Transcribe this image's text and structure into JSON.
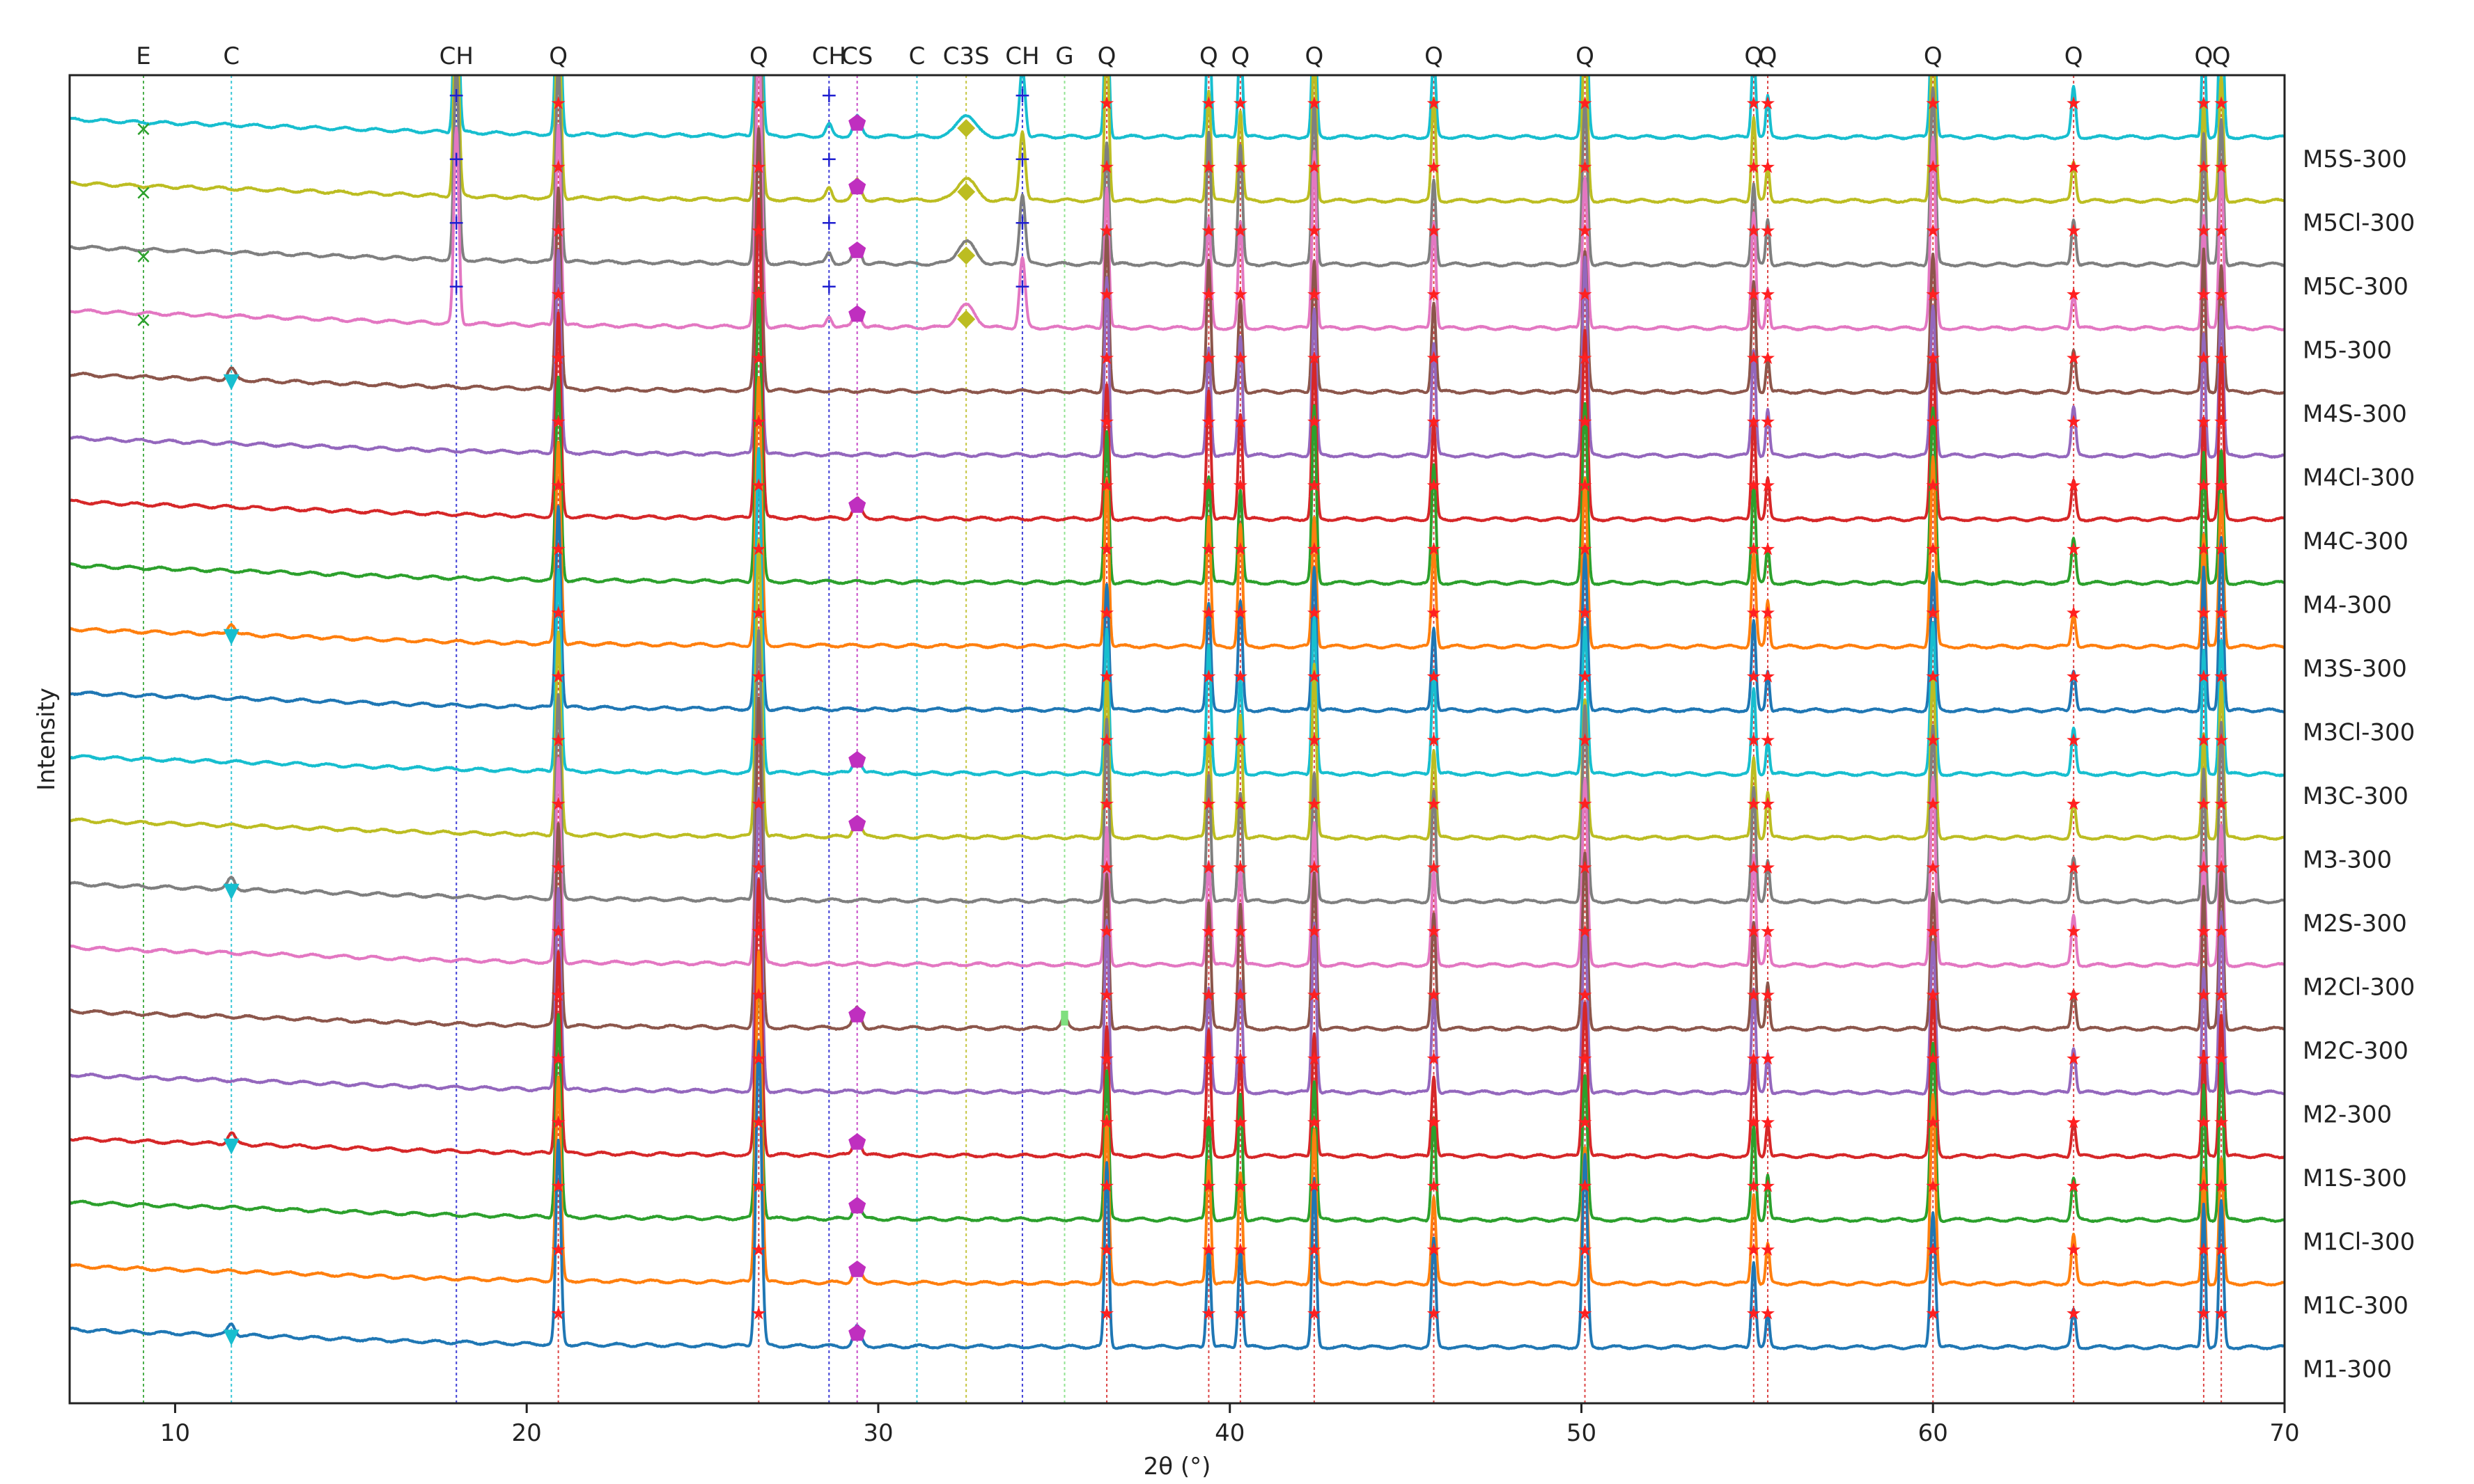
{
  "chart_data": {
    "type": "line",
    "xlabel": "2θ (°)",
    "ylabel": "Intensity",
    "xlim": [
      7,
      70
    ],
    "x_ticks": [
      10,
      20,
      30,
      40,
      50,
      60,
      70
    ],
    "grid": false,
    "phase_lines": [
      {
        "label": "E",
        "x": 9.1,
        "color": "#2ca02c"
      },
      {
        "label": "C",
        "x": 11.6,
        "color": "#17becf"
      },
      {
        "label": "CH",
        "x": 18.0,
        "color": "#1f1fd0"
      },
      {
        "label": "Q",
        "x": 20.9,
        "color": "#d62728"
      },
      {
        "label": "Q",
        "x": 26.6,
        "color": "#d62728"
      },
      {
        "label": "CH",
        "x": 28.6,
        "color": "#1f1fd0"
      },
      {
        "label": "CS",
        "x": 29.4,
        "color": "#bf2fbf"
      },
      {
        "label": "C",
        "x": 31.1,
        "color": "#17becf"
      },
      {
        "label": "C3S",
        "x": 32.5,
        "color": "#bcbd22"
      },
      {
        "label": "CH",
        "x": 34.1,
        "color": "#1f1fd0"
      },
      {
        "label": "G",
        "x": 35.3,
        "color": "#7fdf7f"
      },
      {
        "label": "Q",
        "x": 36.5,
        "color": "#d62728"
      },
      {
        "label": "Q",
        "x": 39.4,
        "color": "#d62728"
      },
      {
        "label": "Q",
        "x": 40.3,
        "color": "#d62728"
      },
      {
        "label": "Q",
        "x": 42.4,
        "color": "#d62728"
      },
      {
        "label": "Q",
        "x": 45.8,
        "color": "#d62728"
      },
      {
        "label": "Q",
        "x": 50.1,
        "color": "#d62728"
      },
      {
        "label": "Q",
        "x": 54.9,
        "color": "#d62728"
      },
      {
        "label": "Q",
        "x": 55.3,
        "color": "#d62728"
      },
      {
        "label": "Q",
        "x": 60.0,
        "color": "#d62728"
      },
      {
        "label": "Q",
        "x": 64.0,
        "color": "#d62728"
      },
      {
        "label": "Q",
        "x": 67.7,
        "color": "#d62728"
      },
      {
        "label": "Q",
        "x": 68.2,
        "color": "#d62728"
      }
    ],
    "series": [
      {
        "name": "M5S-300",
        "color": "#17becf",
        "phases": [
          "E",
          "CH",
          "Q",
          "CH",
          "CS",
          "C3S",
          "CH",
          "Q"
        ],
        "peaks": {
          "E": 0.15,
          "CH": 0.55,
          "C3S": 0.2,
          "Q": 1.0
        }
      },
      {
        "name": "M5Cl-300",
        "color": "#bcbd22",
        "phases": [
          "E",
          "CH",
          "Q",
          "CH",
          "CS",
          "C3S",
          "CH",
          "Q"
        ],
        "peaks": {
          "E": 0.15,
          "CH": 0.5,
          "C3S": 0.2,
          "Q": 1.0
        }
      },
      {
        "name": "M5C-300",
        "color": "#7f7f7f",
        "phases": [
          "E",
          "CH",
          "Q",
          "CS",
          "C3S",
          "CH",
          "Q"
        ],
        "peaks": {
          "E": 0.15,
          "CH": 0.5,
          "C3S": 0.2,
          "Q": 1.0
        }
      },
      {
        "name": "M5-300",
        "color": "#e377c2",
        "phases": [
          "E",
          "CH",
          "Q",
          "CH",
          "CS",
          "C3S",
          "CH",
          "Q"
        ],
        "peaks": {
          "E": 0.15,
          "CH": 0.5,
          "C3S": 0.2,
          "Q": 1.0
        }
      },
      {
        "name": "M4S-300",
        "color": "#8c564b",
        "phases": [
          "C",
          "Q"
        ],
        "peaks": {
          "C": 0.1,
          "Q": 1.0
        }
      },
      {
        "name": "M4Cl-300",
        "color": "#9467bd",
        "phases": [
          "Q"
        ],
        "peaks": {
          "Q": 1.0
        }
      },
      {
        "name": "M4C-300",
        "color": "#d62728",
        "phases": [
          "Q",
          "CS",
          "Q"
        ],
        "peaks": {
          "CS": 0.1,
          "Q": 1.0
        }
      },
      {
        "name": "M4-300",
        "color": "#2ca02c",
        "phases": [
          "Q"
        ],
        "peaks": {
          "Q": 1.0
        }
      },
      {
        "name": "M3S-300",
        "color": "#ff7f0e",
        "phases": [
          "C",
          "Q"
        ],
        "peaks": {
          "C": 0.1,
          "Q": 1.0
        }
      },
      {
        "name": "M3Cl-300",
        "color": "#1f77b4",
        "phases": [
          "Q"
        ],
        "peaks": {
          "Q": 1.0
        }
      },
      {
        "name": "M3C-300",
        "color": "#17becf",
        "phases": [
          "Q",
          "CS",
          "Q"
        ],
        "peaks": {
          "CS": 0.1,
          "Q": 1.0
        }
      },
      {
        "name": "M3-300",
        "color": "#bcbd22",
        "phases": [
          "Q",
          "CS",
          "Q"
        ],
        "peaks": {
          "CS": 0.1,
          "Q": 1.0
        }
      },
      {
        "name": "M2S-300",
        "color": "#7f7f7f",
        "phases": [
          "C",
          "Q"
        ],
        "peaks": {
          "C": 0.1,
          "Q": 1.0
        }
      },
      {
        "name": "M2Cl-300",
        "color": "#e377c2",
        "phases": [
          "Q"
        ],
        "peaks": {
          "Q": 1.0
        }
      },
      {
        "name": "M2C-300",
        "color": "#8c564b",
        "phases": [
          "Q",
          "CS",
          "G",
          "Q"
        ],
        "peaks": {
          "CS": 0.1,
          "G": 0.1,
          "Q": 1.0
        }
      },
      {
        "name": "M2-300",
        "color": "#9467bd",
        "phases": [
          "Q"
        ],
        "peaks": {
          "Q": 1.0
        }
      },
      {
        "name": "M1S-300",
        "color": "#d62728",
        "phases": [
          "C",
          "Q",
          "CH",
          "CS",
          "Q"
        ],
        "peaks": {
          "C": 0.1,
          "CH": 0.05,
          "CS": 0.1,
          "Q": 1.0
        }
      },
      {
        "name": "M1Cl-300",
        "color": "#2ca02c",
        "phases": [
          "Q",
          "CS",
          "Q"
        ],
        "peaks": {
          "CS": 0.1,
          "Q": 1.0
        }
      },
      {
        "name": "M1C-300",
        "color": "#ff7f0e",
        "phases": [
          "Q",
          "CS",
          "Q"
        ],
        "peaks": {
          "CS": 0.1,
          "Q": 1.0
        }
      },
      {
        "name": "M1-300",
        "color": "#1f77b4",
        "phases": [
          "Q",
          "CS",
          "C",
          "Q"
        ],
        "peaks": {
          "CS": 0.1,
          "C": 0.1,
          "Q": 1.0
        }
      }
    ]
  }
}
